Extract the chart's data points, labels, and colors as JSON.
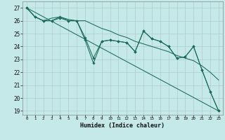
{
  "background_color": "#c5e8e8",
  "grid_color": "#b0cccc",
  "line_color": "#1a6b5a",
  "xlabel": "Humidex (Indice chaleur)",
  "xlim": [
    -0.5,
    23.5
  ],
  "ylim": [
    18.7,
    27.5
  ],
  "yticks": [
    19,
    20,
    21,
    22,
    23,
    24,
    25,
    26,
    27
  ],
  "xticks": [
    0,
    1,
    2,
    3,
    4,
    5,
    6,
    7,
    8,
    9,
    10,
    11,
    12,
    13,
    14,
    15,
    16,
    17,
    18,
    19,
    20,
    21,
    22,
    23
  ],
  "series": [
    {
      "x": [
        0,
        1,
        2,
        3,
        4,
        5,
        6,
        7,
        8,
        9,
        10,
        11,
        12,
        13,
        14,
        15,
        16,
        17,
        18,
        19,
        20,
        21,
        22,
        23
      ],
      "y": [
        27.0,
        26.3,
        26.0,
        26.0,
        26.3,
        26.0,
        26.0,
        24.5,
        22.7,
        24.4,
        24.5,
        24.4,
        24.3,
        23.6,
        25.2,
        24.6,
        24.4,
        24.0,
        23.1,
        23.2,
        24.0,
        22.2,
        20.5,
        19.0
      ],
      "has_markers": true
    },
    {
      "x": [
        0,
        1,
        2,
        3,
        4,
        5,
        6,
        7,
        8,
        9,
        10,
        11,
        12,
        13,
        14,
        15,
        16,
        17,
        18,
        19,
        20,
        21,
        22,
        23
      ],
      "y": [
        27.0,
        26.3,
        26.0,
        26.2,
        26.3,
        26.1,
        26.0,
        26.0,
        25.7,
        25.4,
        25.2,
        24.9,
        24.7,
        24.4,
        24.2,
        24.0,
        23.8,
        23.6,
        23.3,
        23.1,
        22.9,
        22.5,
        22.0,
        21.4
      ],
      "has_markers": false
    },
    {
      "x": [
        0,
        1,
        2,
        3,
        4,
        5,
        6,
        7,
        8,
        9,
        10,
        11,
        12,
        13,
        14,
        15,
        16,
        17,
        18,
        19,
        20,
        21,
        22,
        23
      ],
      "y": [
        27.0,
        26.3,
        26.0,
        26.0,
        26.2,
        26.0,
        26.0,
        24.7,
        23.1,
        24.4,
        24.5,
        24.4,
        24.3,
        23.6,
        25.2,
        24.6,
        24.4,
        24.0,
        23.1,
        23.2,
        24.0,
        22.2,
        20.5,
        19.0
      ],
      "has_markers": true
    },
    {
      "x": [
        0,
        23
      ],
      "y": [
        27.0,
        19.0
      ],
      "has_markers": false
    }
  ]
}
